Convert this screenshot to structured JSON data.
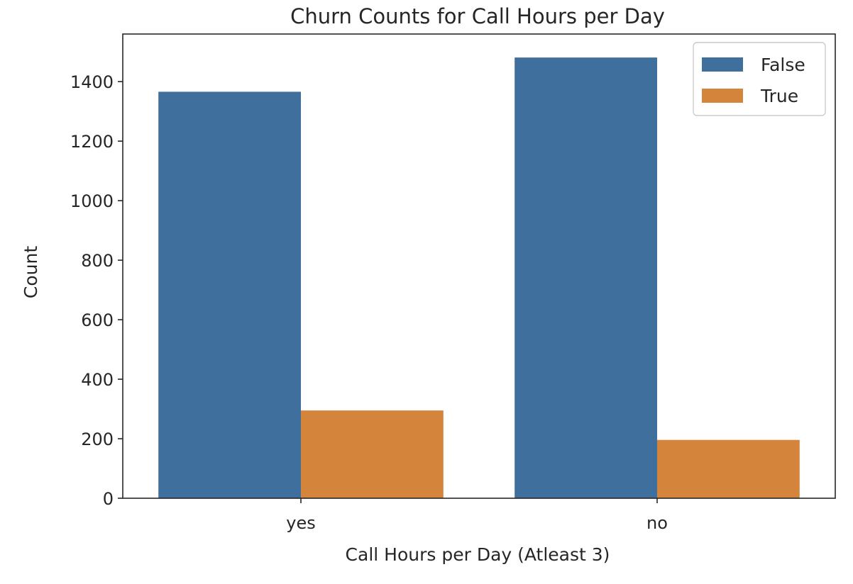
{
  "chart_data": {
    "type": "bar",
    "title": "Churn Counts for Call Hours per Day",
    "xlabel": "Call Hours per Day (Atleast 3)",
    "ylabel": "Count",
    "categories": [
      "yes",
      "no"
    ],
    "series": [
      {
        "name": "False",
        "values": [
          1366,
          1481
        ],
        "color": "#3f6f9c"
      },
      {
        "name": "True",
        "values": [
          295,
          196
        ],
        "color": "#d5843c"
      }
    ],
    "ylim": [
      0,
      1560
    ],
    "yticks": [
      0,
      200,
      400,
      600,
      800,
      1000,
      1200,
      1400
    ],
    "ytick_labels": [
      "0",
      "200",
      "400",
      "600",
      "800",
      "1000",
      "1200",
      "1400"
    ],
    "grid": false,
    "legend_position": "top-right"
  }
}
